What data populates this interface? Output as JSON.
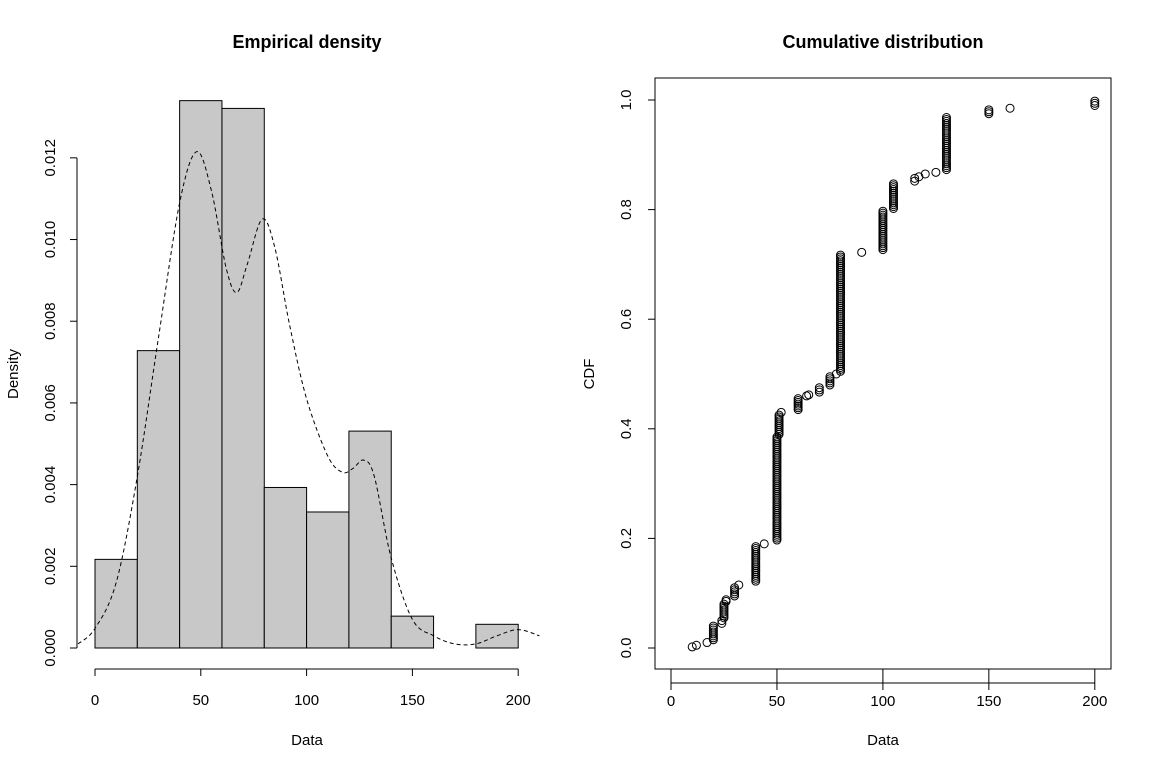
{
  "chart_data": [
    {
      "type": "bar",
      "title": "Empirical density",
      "xlabel": "Data",
      "ylabel": "Density",
      "xlim": [
        0,
        210
      ],
      "ylim": [
        0,
        0.0134
      ],
      "x_ticks": [
        "0",
        "50",
        "100",
        "150",
        "200"
      ],
      "y_ticks": [
        "0.000",
        "0.002",
        "0.004",
        "0.006",
        "0.008",
        "0.010",
        "0.012"
      ],
      "bins": [
        {
          "from": 0,
          "to": 20,
          "density": 0.00217
        },
        {
          "from": 20,
          "to": 40,
          "density": 0.00728
        },
        {
          "from": 40,
          "to": 60,
          "density": 0.0134
        },
        {
          "from": 60,
          "to": 80,
          "density": 0.01321
        },
        {
          "from": 80,
          "to": 100,
          "density": 0.00393
        },
        {
          "from": 100,
          "to": 120,
          "density": 0.00333
        },
        {
          "from": 120,
          "to": 140,
          "density": 0.00531
        },
        {
          "from": 140,
          "to": 160,
          "density": 0.00078
        },
        {
          "from": 160,
          "to": 180,
          "density": 0.0
        },
        {
          "from": 180,
          "to": 200,
          "density": 0.00058
        }
      ],
      "density_curve": {
        "style": "dashed",
        "x": [
          -8,
          0,
          10,
          20,
          30,
          40,
          48,
          55,
          62,
          67,
          72,
          79,
          85,
          92,
          100,
          110,
          117,
          122,
          127,
          132,
          140,
          150,
          160,
          170,
          180,
          190,
          200,
          210
        ],
        "y": [
          0.0001,
          0.00048,
          0.0016,
          0.0042,
          0.0076,
          0.0109,
          0.01215,
          0.0112,
          0.0093,
          0.0087,
          0.0094,
          0.0105,
          0.0098,
          0.0079,
          0.0061,
          0.0047,
          0.0043,
          0.0044,
          0.0046,
          0.0042,
          0.0022,
          0.0007,
          0.0003,
          0.0001,
          0.0001,
          0.0003,
          0.00045,
          0.0003
        ]
      }
    },
    {
      "type": "scatter",
      "title": "Cumulative distribution",
      "xlabel": "Data",
      "ylabel": "CDF",
      "xlim": [
        0,
        200
      ],
      "ylim": [
        0,
        1
      ],
      "x_ticks": [
        "0",
        "50",
        "100",
        "150",
        "200"
      ],
      "y_ticks": [
        "0.0",
        "0.2",
        "0.4",
        "0.6",
        "0.8",
        "1.0"
      ],
      "runs": [
        {
          "x": 10,
          "from": 0.002,
          "to": 0.002
        },
        {
          "x": 12,
          "from": 0.005,
          "to": 0.005
        },
        {
          "x": 17,
          "from": 0.01,
          "to": 0.01
        },
        {
          "x": 20,
          "from": 0.015,
          "to": 0.04
        },
        {
          "x": 24,
          "from": 0.045,
          "to": 0.05
        },
        {
          "x": 25,
          "from": 0.055,
          "to": 0.08
        },
        {
          "x": 26,
          "from": 0.085,
          "to": 0.088
        },
        {
          "x": 30,
          "from": 0.095,
          "to": 0.11
        },
        {
          "x": 32,
          "from": 0.115,
          "to": 0.115
        },
        {
          "x": 40,
          "from": 0.122,
          "to": 0.185
        },
        {
          "x": 44,
          "from": 0.19,
          "to": 0.19
        },
        {
          "x": 50,
          "from": 0.197,
          "to": 0.385
        },
        {
          "x": 51,
          "from": 0.39,
          "to": 0.425
        },
        {
          "x": 52,
          "from": 0.43,
          "to": 0.43
        },
        {
          "x": 60,
          "from": 0.435,
          "to": 0.455
        },
        {
          "x": 64,
          "from": 0.46,
          "to": 0.46
        },
        {
          "x": 65,
          "from": 0.462,
          "to": 0.462
        },
        {
          "x": 70,
          "from": 0.467,
          "to": 0.475
        },
        {
          "x": 75,
          "from": 0.48,
          "to": 0.495
        },
        {
          "x": 78,
          "from": 0.5,
          "to": 0.5
        },
        {
          "x": 80,
          "from": 0.505,
          "to": 0.717
        },
        {
          "x": 90,
          "from": 0.722,
          "to": 0.722
        },
        {
          "x": 100,
          "from": 0.727,
          "to": 0.797
        },
        {
          "x": 105,
          "from": 0.802,
          "to": 0.847
        },
        {
          "x": 115,
          "from": 0.852,
          "to": 0.857
        },
        {
          "x": 117,
          "from": 0.86,
          "to": 0.86
        },
        {
          "x": 120,
          "from": 0.865,
          "to": 0.865
        },
        {
          "x": 125,
          "from": 0.868,
          "to": 0.868
        },
        {
          "x": 130,
          "from": 0.873,
          "to": 0.968
        },
        {
          "x": 150,
          "from": 0.975,
          "to": 0.982
        },
        {
          "x": 160,
          "from": 0.985,
          "to": 0.985
        },
        {
          "x": 200,
          "from": 0.99,
          "to": 0.998
        }
      ]
    }
  ]
}
